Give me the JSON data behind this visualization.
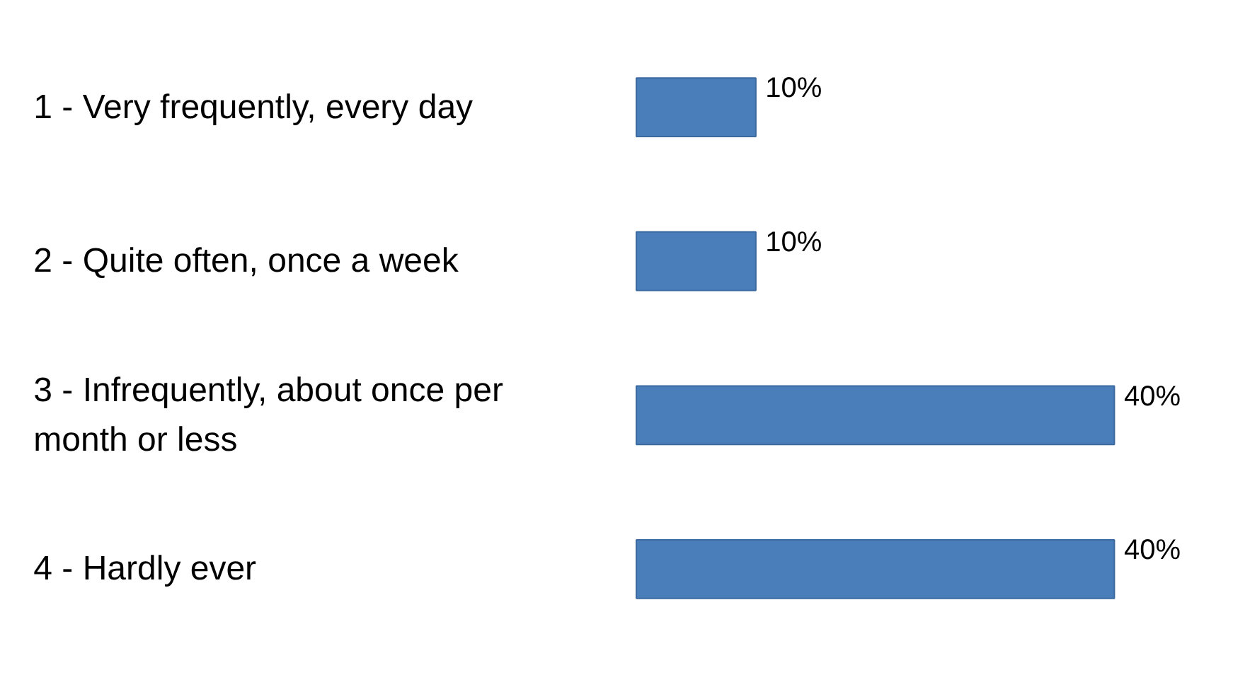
{
  "chart_data": {
    "type": "bar",
    "orientation": "horizontal",
    "categories": [
      "1 - Very frequently, every day",
      "2 - Quite often, once a week",
      "3 - Infrequently, about once per month or less",
      "4 - Hardly ever"
    ],
    "values": [
      10,
      10,
      40,
      40
    ],
    "value_labels": [
      "10%",
      "10%",
      "40%",
      "40%"
    ],
    "color": "#4a7ebb",
    "tick_labels": "y"
  }
}
